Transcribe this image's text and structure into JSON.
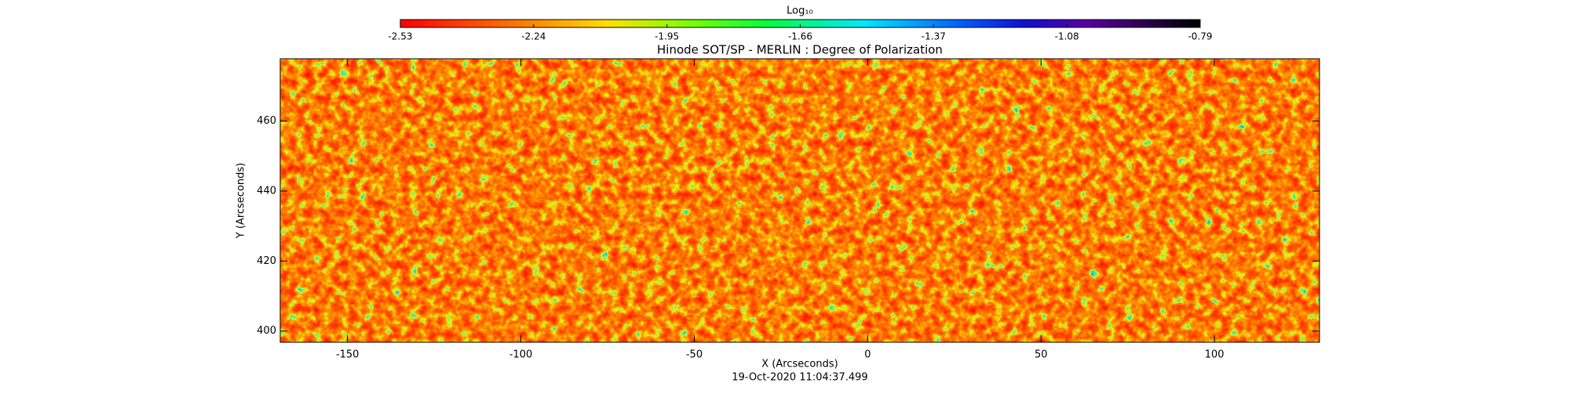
{
  "chart_data": {
    "type": "heatmap",
    "title": "Hinode SOT/SP - MERLIN : Degree of Polarization",
    "x_label": "X (Arcseconds)",
    "y_label": "Y (Arcseconds)",
    "timestamp": "19-Oct-2020 11:04:37.499",
    "colorbar_label": "Log₁₀",
    "xlim": [
      -169.4,
      130.3
    ],
    "xticks": [
      -150,
      -100,
      -50,
      0,
      50,
      100
    ],
    "ylim": [
      396.8,
      477.8
    ],
    "yticks": [
      400,
      420,
      440,
      460
    ],
    "colorbar_lim": [
      -2.53,
      -0.79
    ],
    "colorbar_ticks": [
      -2.53,
      -2.24,
      -1.95,
      -1.66,
      -1.37,
      -1.08,
      -0.79
    ]
  }
}
